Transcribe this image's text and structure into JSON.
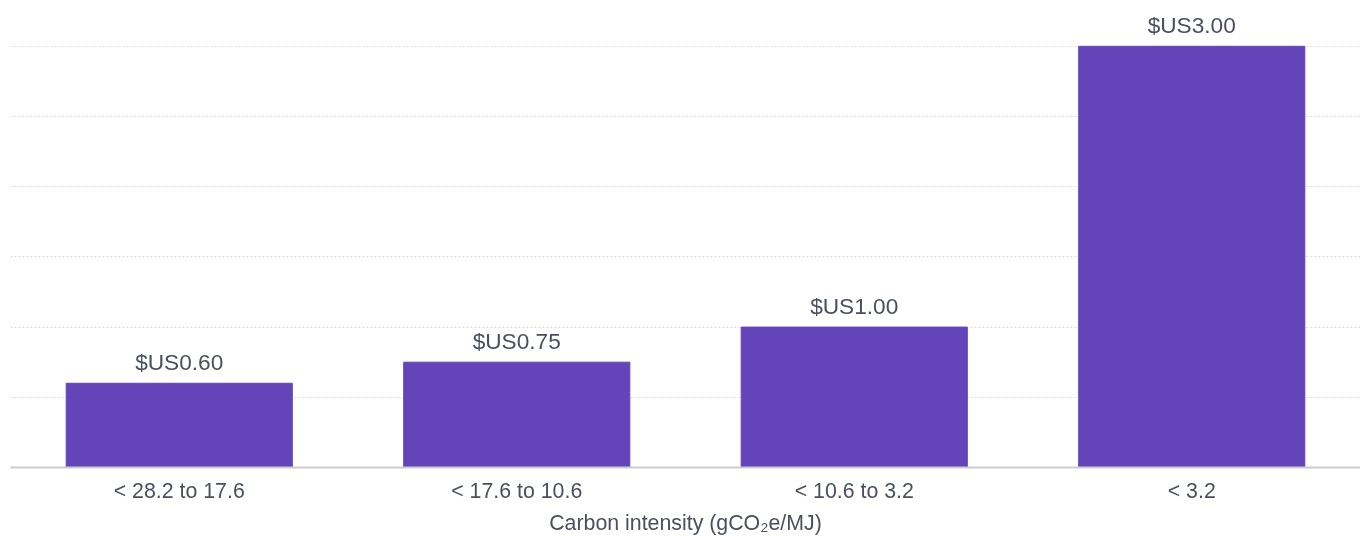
{
  "chart_data": {
    "type": "bar",
    "xlabel": "Carbon intensity (gCO₂e/MJ)",
    "categories": [
      "< 28.2 to 17.6",
      "< 17.6 to 10.6",
      "< 10.6 to 3.2",
      "< 3.2"
    ],
    "values": [
      0.6,
      0.75,
      1.0,
      3.0
    ],
    "color": "#6344b9",
    "value_labels": [
      "$US0.60",
      "$US0.75",
      "$US1.00",
      "$US3.00"
    ],
    "grid": "y",
    "tick_labels": "x"
  }
}
